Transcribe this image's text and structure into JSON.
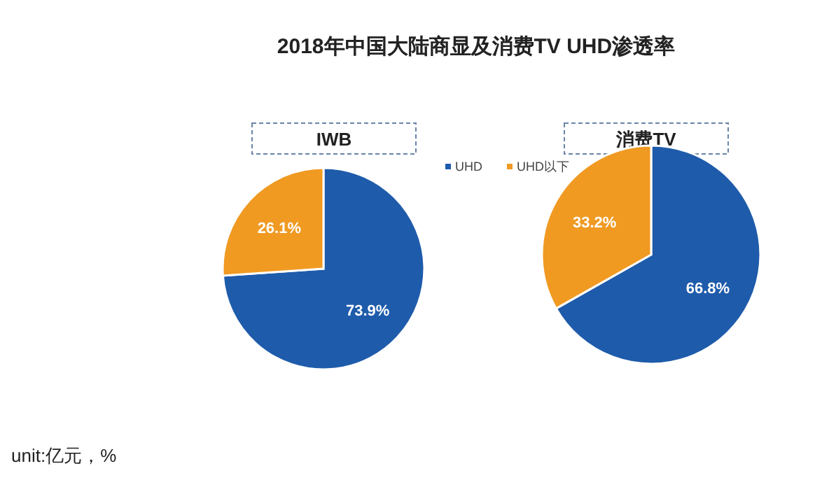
{
  "chart_data": {
    "type": "pie",
    "title": "2018年中国大陆商显及消费TV UHD渗透率",
    "categories": [
      "UHD",
      "UHD以下"
    ],
    "colors": [
      "#1e5bab",
      "#f09a22"
    ],
    "legend": "top",
    "annotations": [
      "unit:亿元，%"
    ],
    "series": [
      {
        "name": "IWB",
        "values": [
          73.9,
          26.1
        ],
        "value_labels": [
          "73.9%",
          "26.1%"
        ]
      },
      {
        "name": "消费TV",
        "values": [
          66.8,
          33.2
        ],
        "value_labels": [
          "66.8%",
          "33.2%"
        ]
      }
    ]
  }
}
